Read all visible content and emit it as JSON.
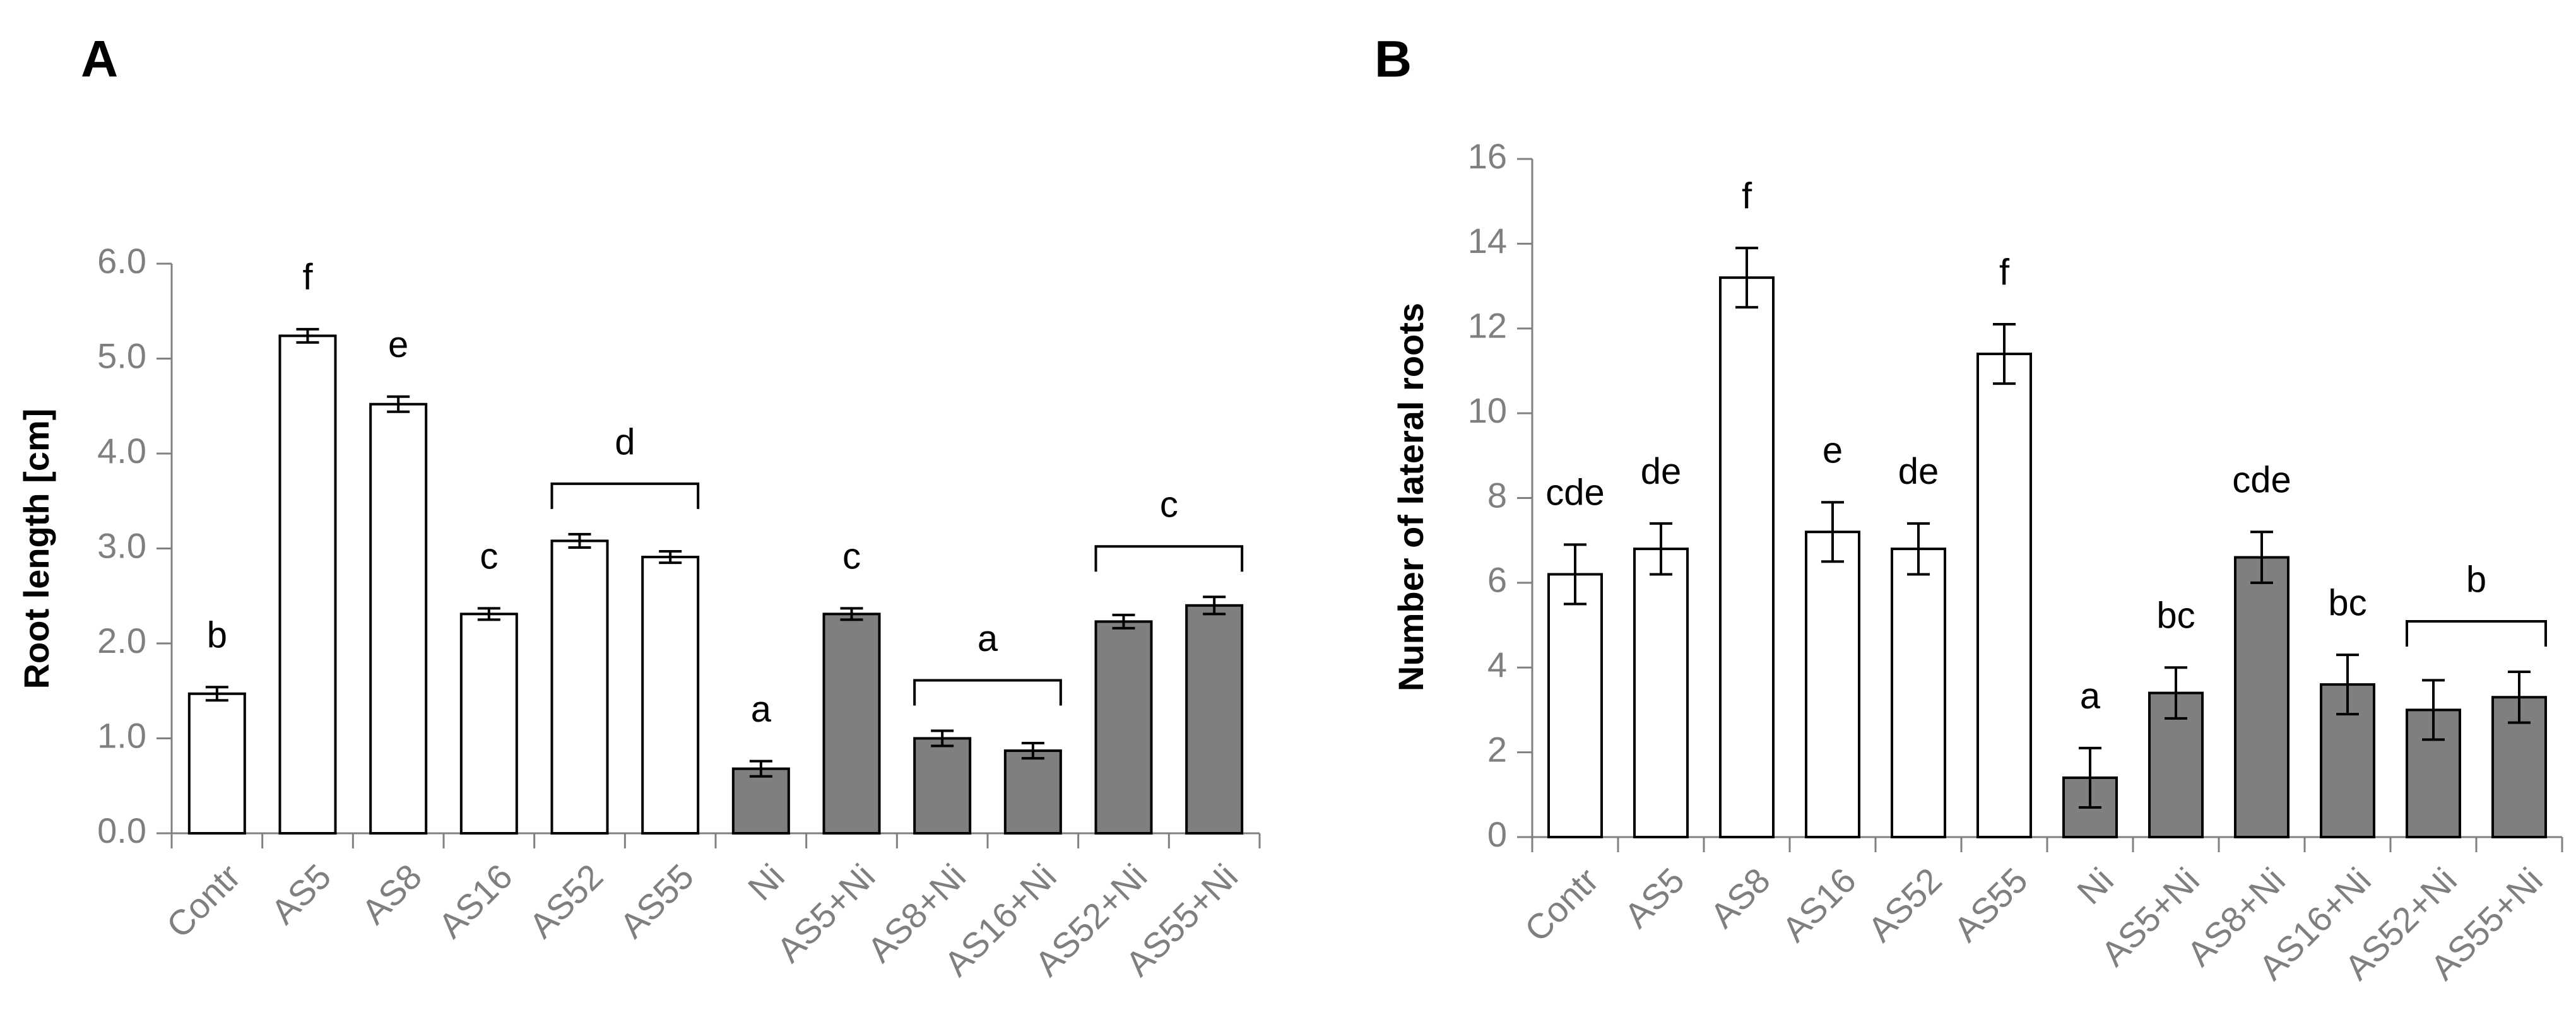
{
  "colors": {
    "control": "#ffffff",
    "nickel": "#7f7f7f",
    "axis": "#808080",
    "text_gray": "#7f7f7f"
  },
  "chart_data": [
    {
      "panel": "A",
      "type": "bar",
      "ylabel": "Root length [cm]",
      "ylim": [
        0,
        6.0
      ],
      "yticks": [
        0,
        1,
        2,
        3,
        4,
        5,
        6
      ],
      "ytick_labels": [
        "0.0",
        "1.0",
        "2.0",
        "3.0",
        "4.0",
        "5.0",
        "6.0"
      ],
      "grid": false,
      "categories": [
        "Contr",
        "AS5",
        "AS8",
        "AS16",
        "AS52",
        "AS55",
        "Ni",
        "AS5+Ni",
        "AS8+Ni",
        "AS16+Ni",
        "AS52+Ni",
        "AS55+Ni"
      ],
      "values": [
        1.47,
        5.24,
        4.52,
        2.31,
        3.08,
        2.91,
        0.68,
        2.31,
        1.0,
        0.87,
        2.23,
        2.4
      ],
      "errors": [
        0.07,
        0.07,
        0.08,
        0.06,
        0.07,
        0.06,
        0.08,
        0.06,
        0.08,
        0.08,
        0.07,
        0.09
      ],
      "fill": [
        "white",
        "white",
        "white",
        "white",
        "white",
        "white",
        "gray",
        "gray",
        "gray",
        "gray",
        "gray",
        "gray"
      ],
      "annotations": [
        {
          "text": "b",
          "bars": [
            0
          ]
        },
        {
          "text": "f",
          "bars": [
            1
          ]
        },
        {
          "text": "e",
          "bars": [
            2
          ]
        },
        {
          "text": "c",
          "bars": [
            3
          ]
        },
        {
          "text": "d",
          "bars": [
            4,
            5
          ]
        },
        {
          "text": "a",
          "bars": [
            6
          ]
        },
        {
          "text": "c",
          "bars": [
            7
          ]
        },
        {
          "text": "a",
          "bars": [
            8,
            9
          ]
        },
        {
          "text": "c",
          "bars": [
            10,
            11
          ]
        }
      ]
    },
    {
      "panel": "B",
      "type": "bar",
      "ylabel": "Number of lateral roots",
      "ylim": [
        0,
        16
      ],
      "yticks": [
        0,
        2,
        4,
        6,
        8,
        10,
        12,
        14,
        16
      ],
      "ytick_labels": [
        "0",
        "2",
        "4",
        "6",
        "8",
        "10",
        "12",
        "14",
        "16"
      ],
      "grid": false,
      "categories": [
        "Contr",
        "AS5",
        "AS8",
        "AS16",
        "AS52",
        "AS55",
        "Ni",
        "AS5+Ni",
        "AS8+Ni",
        "AS16+Ni",
        "AS52+Ni",
        "AS55+Ni"
      ],
      "values": [
        6.2,
        6.8,
        13.2,
        7.2,
        6.8,
        11.4,
        1.4,
        3.4,
        6.6,
        3.6,
        3.0,
        3.3
      ],
      "errors": [
        0.7,
        0.6,
        0.7,
        0.7,
        0.6,
        0.7,
        0.7,
        0.6,
        0.6,
        0.7,
        0.7,
        0.6
      ],
      "fill": [
        "white",
        "white",
        "white",
        "white",
        "white",
        "white",
        "gray",
        "gray",
        "gray",
        "gray",
        "gray",
        "gray"
      ],
      "annotations": [
        {
          "text": "cde",
          "bars": [
            0
          ]
        },
        {
          "text": "de",
          "bars": [
            1
          ]
        },
        {
          "text": "f",
          "bars": [
            2
          ]
        },
        {
          "text": "e",
          "bars": [
            3
          ]
        },
        {
          "text": "de",
          "bars": [
            4
          ]
        },
        {
          "text": "f",
          "bars": [
            5
          ]
        },
        {
          "text": "a",
          "bars": [
            6
          ]
        },
        {
          "text": "bc",
          "bars": [
            7
          ]
        },
        {
          "text": "cde",
          "bars": [
            8
          ]
        },
        {
          "text": "bc",
          "bars": [
            9
          ]
        },
        {
          "text": "b",
          "bars": [
            10,
            11
          ]
        }
      ]
    }
  ]
}
